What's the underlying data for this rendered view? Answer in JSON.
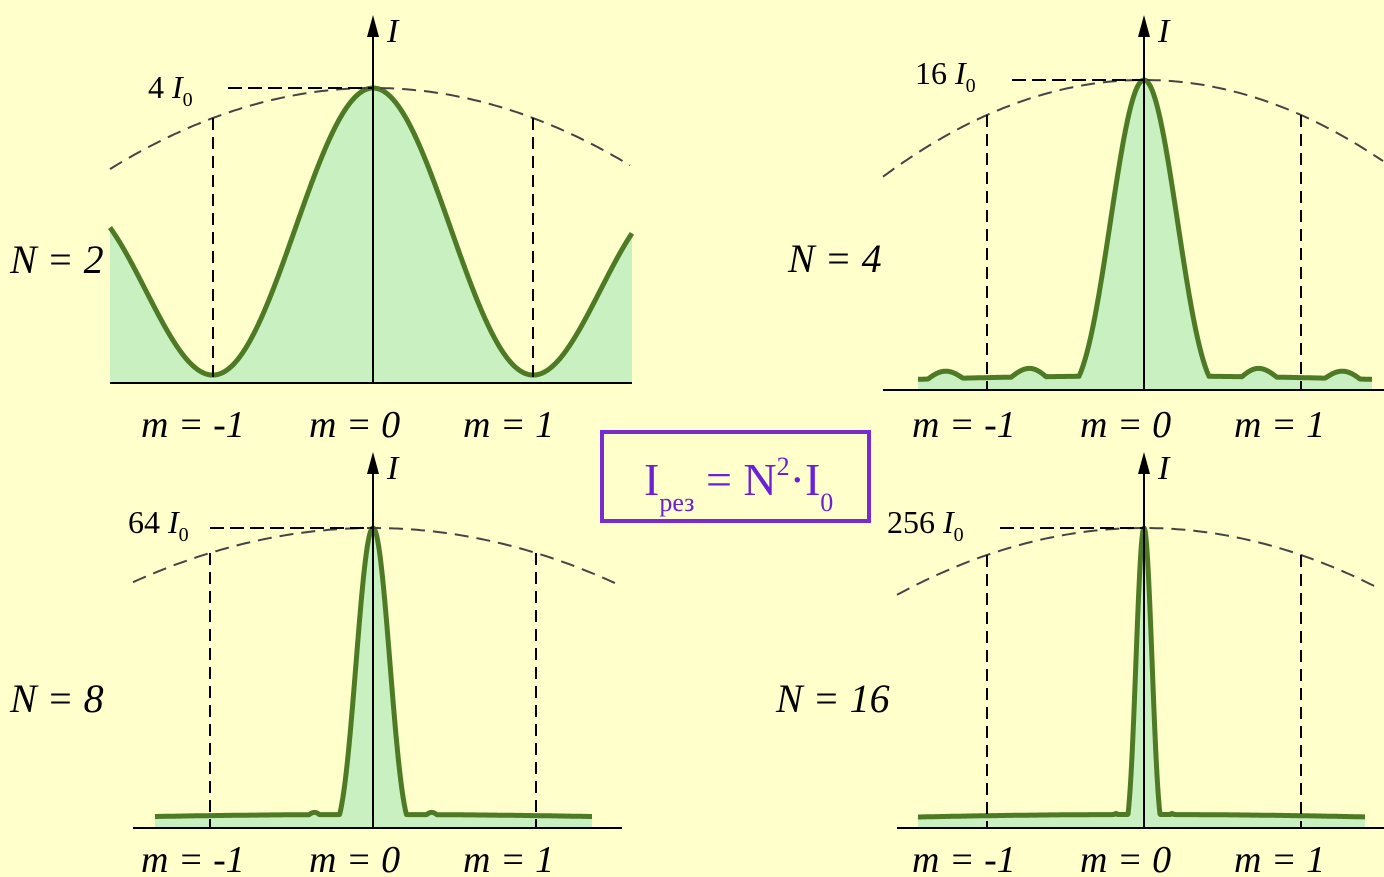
{
  "colors": {
    "background": "#ffffcc",
    "curve": "#4f7a25",
    "fill": "#c9f0c0",
    "axis": "#000000",
    "envelope": "#444444",
    "formula": "#6b21d6",
    "formula_border": "#7a2bcf"
  },
  "axis_symbol": "I",
  "order_labels": [
    "m = -1",
    "m = 0",
    "m = 1"
  ],
  "formula": {
    "base": "I",
    "sub": "рез",
    "eq": " = N",
    "sup": "2",
    "dot": "·I",
    "sub2": "0"
  },
  "chart_data": [
    {
      "type": "line",
      "n_label": "N = 2",
      "N": 2,
      "peak_label": "4",
      "peak_label_unit": "I",
      "peak_label_unit_sub": "0",
      "peak_value": 4,
      "orders": [
        -1,
        0,
        1
      ],
      "ylim": [
        0,
        4
      ]
    },
    {
      "type": "line",
      "n_label": "N = 4",
      "N": 4,
      "peak_label": "16",
      "peak_label_unit": "I",
      "peak_label_unit_sub": "0",
      "peak_value": 16,
      "orders": [
        -1,
        0,
        1
      ],
      "ylim": [
        0,
        16
      ]
    },
    {
      "type": "line",
      "n_label": "N = 8",
      "N": 8,
      "peak_label": "64",
      "peak_label_unit": "I",
      "peak_label_unit_sub": "0",
      "peak_value": 64,
      "orders": [
        -1,
        0,
        1
      ],
      "ylim": [
        0,
        64
      ]
    },
    {
      "type": "line",
      "n_label": "N = 16",
      "N": 16,
      "peak_label": "256",
      "peak_label_unit": "I",
      "peak_label_unit_sub": "0",
      "peak_value": 256,
      "orders": [
        -1,
        0,
        1
      ],
      "ylim": [
        0,
        256
      ]
    }
  ]
}
